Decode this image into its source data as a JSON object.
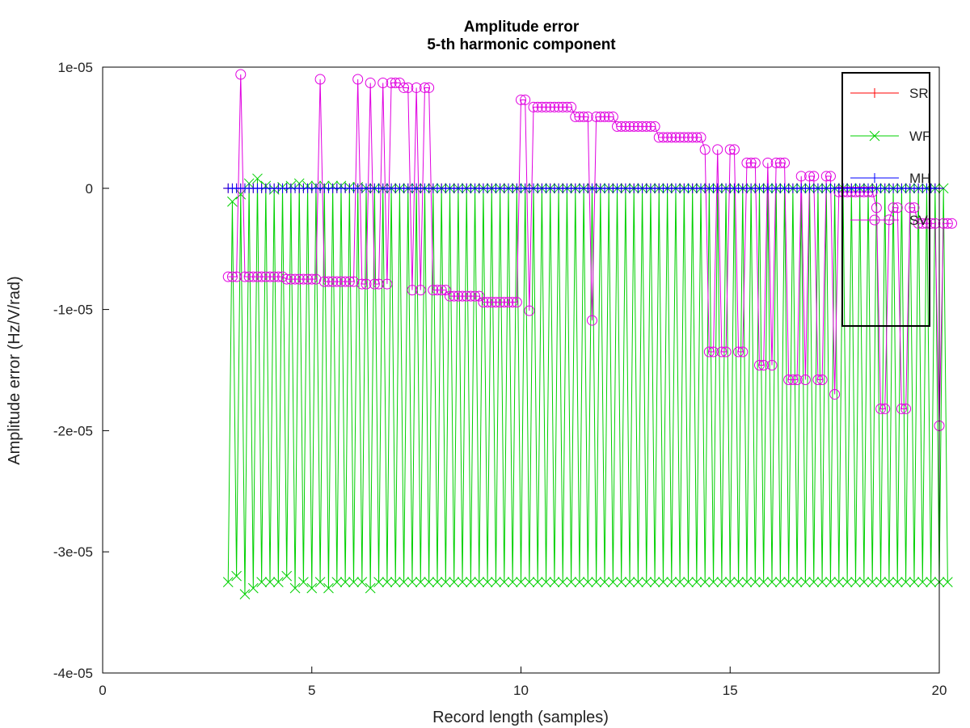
{
  "chart_data": {
    "type": "line",
    "title": "Amplitude error",
    "subtitle": "5-th harmonic component",
    "xlabel": "Record length (samples)",
    "ylabel": "Amplitude error (Hz/V/rad)",
    "xlim": [
      0,
      20
    ],
    "ylim": [
      -4e-05,
      1e-05
    ],
    "xticks": [
      0,
      5,
      10,
      15,
      20
    ],
    "xtick_labels": [
      "0",
      "5",
      "10",
      "15",
      "20"
    ],
    "yticks": [
      1e-05,
      0,
      -1e-05,
      -2e-05,
      -3e-05,
      -4e-05
    ],
    "ytick_labels": [
      "1e-05",
      "0",
      "-1e-05",
      "-2e-05",
      "-3e-05",
      "-4e-05"
    ],
    "grid": false,
    "legend_position": "top-right",
    "x_start": 3.0,
    "x_step": 0.1,
    "series": [
      {
        "name": "SR",
        "color": "#ff0000",
        "marker": "plus",
        "values": [
          0,
          0,
          0,
          0,
          0,
          0,
          0,
          0,
          0,
          0,
          0,
          0,
          0,
          0,
          0,
          0,
          0,
          0,
          0,
          0,
          0,
          0,
          0,
          0,
          0,
          0,
          0,
          0,
          0,
          0,
          0,
          0,
          0,
          0,
          0,
          0,
          0,
          0,
          0,
          0,
          0,
          0,
          0,
          0,
          0,
          0,
          0,
          0,
          0,
          0,
          0,
          0,
          0,
          0,
          0,
          0,
          0,
          0,
          0,
          0,
          0,
          0,
          0,
          0,
          0,
          0,
          0,
          0,
          0,
          0,
          0,
          0,
          0,
          0,
          0,
          0,
          0,
          0,
          0,
          0,
          0,
          0,
          0,
          0,
          0,
          0,
          0,
          0,
          0,
          0,
          0,
          0,
          0,
          0,
          0,
          0,
          0,
          0,
          0,
          0,
          0,
          0,
          0,
          0,
          0,
          0,
          0,
          0,
          0,
          0,
          0,
          0,
          0,
          0,
          0,
          0,
          0,
          0,
          0,
          0,
          0,
          0,
          0,
          0,
          0,
          0,
          0,
          0,
          0,
          0,
          0,
          0,
          0,
          0,
          0,
          0,
          0,
          0,
          0,
          0,
          0,
          0,
          0,
          0,
          0,
          0,
          0,
          0,
          0,
          0,
          0,
          0,
          0,
          0,
          0,
          0,
          0,
          0,
          0,
          0,
          0,
          0,
          0,
          0,
          0,
          0,
          0,
          0,
          0,
          0,
          0
        ]
      },
      {
        "name": "WF",
        "color": "#00d000",
        "marker": "cross",
        "values": [
          -3.25e-05,
          -1.1e-06,
          -3.2e-05,
          -5e-07,
          -3.35e-05,
          4e-07,
          -3.3e-05,
          8e-07,
          -3.25e-05,
          2e-07,
          -3.25e-05,
          -1e-07,
          -3.25e-05,
          1e-07,
          -3.2e-05,
          2e-07,
          -3.3e-05,
          4e-07,
          -3.25e-05,
          2e-07,
          -3.3e-05,
          2e-07,
          -3.25e-05,
          2e-07,
          -3.3e-05,
          2e-07,
          -3.25e-05,
          2e-07,
          -3.25e-05,
          1e-07,
          -3.25e-05,
          1e-07,
          -3.25e-05,
          0,
          -3.3e-05,
          0,
          -3.25e-05,
          0,
          -3.25e-05,
          0,
          -3.25e-05,
          0,
          -3.25e-05,
          0,
          -3.25e-05,
          0,
          -3.25e-05,
          0,
          -3.25e-05,
          0,
          -3.25e-05,
          0,
          -3.25e-05,
          0,
          -3.25e-05,
          0,
          -3.25e-05,
          0,
          -3.25e-05,
          0,
          -3.25e-05,
          0,
          -3.25e-05,
          0,
          -3.25e-05,
          0,
          -3.25e-05,
          0,
          -3.25e-05,
          0,
          -3.25e-05,
          0,
          -3.25e-05,
          0,
          -3.25e-05,
          0,
          -3.25e-05,
          0,
          -3.25e-05,
          0,
          -3.25e-05,
          0,
          -3.25e-05,
          0,
          -3.25e-05,
          0,
          -3.25e-05,
          0,
          -3.25e-05,
          0,
          -3.25e-05,
          0,
          -3.25e-05,
          0,
          -3.25e-05,
          0,
          -3.25e-05,
          0,
          -3.25e-05,
          0,
          -3.25e-05,
          0,
          -3.25e-05,
          0,
          -3.25e-05,
          0,
          -3.25e-05,
          0,
          -3.25e-05,
          0,
          -3.25e-05,
          0,
          -3.25e-05,
          0,
          -3.25e-05,
          0,
          -3.25e-05,
          0,
          -3.25e-05,
          0,
          -3.25e-05,
          0,
          -3.25e-05,
          0,
          -3.25e-05,
          0,
          -3.25e-05,
          0,
          -3.25e-05,
          0,
          -3.25e-05,
          0,
          -3.25e-05,
          0,
          -3.25e-05,
          0,
          -3.25e-05,
          0,
          -3.25e-05,
          0,
          -3.25e-05,
          0,
          -3.25e-05,
          0,
          -3.25e-05,
          0,
          -3.25e-05,
          0,
          -3.25e-05,
          0,
          -3.25e-05,
          0,
          -3.25e-05,
          0,
          -3.25e-05,
          0,
          -3.25e-05,
          0,
          -3.25e-05,
          0,
          -3.25e-05,
          0,
          -3.25e-05,
          0,
          -3.25e-05,
          0,
          -3.25e-05,
          0,
          -3.25e-05,
          0,
          -3.25e-05,
          0,
          -3.25e-05
        ]
      },
      {
        "name": "MH",
        "color": "#0000ff",
        "marker": "plus",
        "values": [
          0,
          0,
          0,
          0,
          0,
          0,
          0,
          0,
          0,
          0,
          0,
          0,
          0,
          0,
          0,
          0,
          0,
          0,
          0,
          0,
          0,
          0,
          0,
          0,
          0,
          0,
          0,
          0,
          0,
          0,
          0,
          0,
          0,
          0,
          0,
          0,
          0,
          0,
          0,
          0,
          0,
          0,
          0,
          0,
          0,
          0,
          0,
          0,
          0,
          0,
          0,
          0,
          0,
          0,
          0,
          0,
          0,
          0,
          0,
          0,
          0,
          0,
          0,
          0,
          0,
          0,
          0,
          0,
          0,
          0,
          0,
          0,
          0,
          0,
          0,
          0,
          0,
          0,
          0,
          0,
          0,
          0,
          0,
          0,
          0,
          0,
          0,
          0,
          0,
          0,
          0,
          0,
          0,
          0,
          0,
          0,
          0,
          0,
          0,
          0,
          0,
          0,
          0,
          0,
          0,
          0,
          0,
          0,
          0,
          0,
          0,
          0,
          0,
          0,
          0,
          0,
          0,
          0,
          0,
          0,
          0,
          0,
          0,
          0,
          0,
          0,
          0,
          0,
          0,
          0,
          0,
          0,
          0,
          0,
          0,
          0,
          0,
          0,
          0,
          0,
          0,
          0,
          0,
          0,
          0,
          0,
          0,
          0,
          0,
          0,
          0,
          0,
          0,
          0,
          0,
          0,
          0,
          0,
          0,
          0,
          0,
          0,
          0,
          0,
          0,
          0,
          0,
          0,
          0,
          0,
          0
        ]
      },
      {
        "name": "SV",
        "color": "#e000e0",
        "marker": "circle",
        "values": [
          -7.3e-06,
          -7.3e-06,
          -7.3e-06,
          9.4e-06,
          -7.3e-06,
          -7.3e-06,
          -7.3e-06,
          -7.3e-06,
          -7.3e-06,
          -7.3e-06,
          -7.3e-06,
          -7.3e-06,
          -7.3e-06,
          -7.3e-06,
          -7.5e-06,
          -7.5e-06,
          -7.5e-06,
          -7.5e-06,
          -7.5e-06,
          -7.5e-06,
          -7.5e-06,
          -7.5e-06,
          9e-06,
          -7.7e-06,
          -7.7e-06,
          -7.7e-06,
          -7.7e-06,
          -7.7e-06,
          -7.7e-06,
          -7.7e-06,
          -7.7e-06,
          9e-06,
          -7.9e-06,
          -7.9e-06,
          8.7e-06,
          -7.9e-06,
          -7.9e-06,
          8.7e-06,
          -7.9e-06,
          8.7e-06,
          8.7e-06,
          8.7e-06,
          8.3e-06,
          8.3e-06,
          -8.4e-06,
          8.3e-06,
          -8.4e-06,
          8.3e-06,
          8.3e-06,
          -8.4e-06,
          -8.4e-06,
          -8.4e-06,
          -8.4e-06,
          -8.9e-06,
          -8.9e-06,
          -8.9e-06,
          -8.9e-06,
          -8.9e-06,
          -8.9e-06,
          -8.9e-06,
          -8.9e-06,
          -9.4e-06,
          -9.4e-06,
          -9.4e-06,
          -9.4e-06,
          -9.4e-06,
          -9.4e-06,
          -9.4e-06,
          -9.4e-06,
          -9.4e-06,
          7.3e-06,
          7.3e-06,
          -1.01e-05,
          6.7e-06,
          6.7e-06,
          6.7e-06,
          6.7e-06,
          6.7e-06,
          6.7e-06,
          6.7e-06,
          6.7e-06,
          6.7e-06,
          6.7e-06,
          5.9e-06,
          5.9e-06,
          5.9e-06,
          5.9e-06,
          -1.09e-05,
          5.9e-06,
          5.9e-06,
          5.9e-06,
          5.9e-06,
          5.9e-06,
          5.1e-06,
          5.1e-06,
          5.1e-06,
          5.1e-06,
          5.1e-06,
          5.1e-06,
          5.1e-06,
          5.1e-06,
          5.1e-06,
          5.1e-06,
          4.2e-06,
          4.2e-06,
          4.2e-06,
          4.2e-06,
          4.2e-06,
          4.2e-06,
          4.2e-06,
          4.2e-06,
          4.2e-06,
          4.2e-06,
          4.2e-06,
          3.2e-06,
          -1.35e-05,
          -1.35e-05,
          3.2e-06,
          -1.35e-05,
          -1.35e-05,
          3.2e-06,
          3.2e-06,
          -1.35e-05,
          -1.35e-05,
          2.1e-06,
          2.1e-06,
          2.1e-06,
          -1.46e-05,
          -1.46e-05,
          2.1e-06,
          -1.46e-05,
          2.1e-06,
          2.1e-06,
          2.1e-06,
          -1.58e-05,
          -1.58e-05,
          -1.58e-05,
          1e-06,
          -1.58e-05,
          1e-06,
          1e-06,
          -1.58e-05,
          -1.58e-05,
          1e-06,
          1e-06,
          -1.7e-05,
          -3e-07,
          -3e-07,
          -3e-07,
          -3e-07,
          -3e-07,
          -3e-07,
          -3e-07,
          -3e-07,
          -3e-07,
          -1.6e-06,
          -1.82e-05,
          -1.82e-05,
          -2.6e-06,
          -1.6e-06,
          -1.6e-06,
          -1.82e-05,
          -1.82e-05,
          -1.6e-06,
          -1.6e-06,
          -2.9e-06,
          -2.9e-06,
          -2.9e-06,
          -2.9e-06,
          -2.9e-06,
          -1.96e-05,
          -2.9e-06,
          -2.9e-06,
          -2.9e-06
        ]
      }
    ]
  }
}
